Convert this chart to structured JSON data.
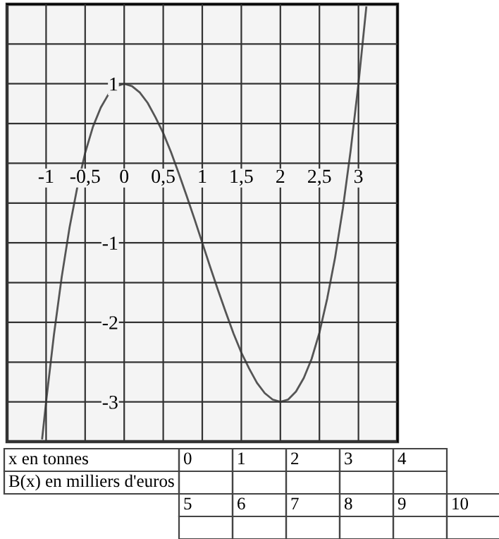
{
  "chart_data": {
    "type": "line",
    "x": [
      -1.05,
      -1.0,
      -0.9,
      -0.8,
      -0.7,
      -0.6,
      -0.5,
      -0.4,
      -0.3,
      -0.2,
      -0.1,
      0.0,
      0.1,
      0.2,
      0.3,
      0.4,
      0.5,
      0.6,
      0.7,
      0.8,
      0.9,
      1.0,
      1.1,
      1.2,
      1.3,
      1.4,
      1.5,
      1.6,
      1.7,
      1.8,
      1.9,
      2.0,
      2.1,
      2.2,
      2.3,
      2.4,
      2.5,
      2.6,
      2.7,
      2.8,
      2.9,
      3.0,
      3.1
    ],
    "series": [
      {
        "color": "#555555",
        "values": [
          -3.46,
          -3.0,
          -2.16,
          -1.43,
          -0.81,
          -0.3,
          0.13,
          0.46,
          0.7,
          0.87,
          0.97,
          1.0,
          0.97,
          0.89,
          0.76,
          0.58,
          0.38,
          0.14,
          -0.13,
          -0.41,
          -0.7,
          -1.0,
          -1.3,
          -1.59,
          -1.87,
          -2.14,
          -2.38,
          -2.58,
          -2.76,
          -2.89,
          -2.97,
          -3.0,
          -2.97,
          -2.87,
          -2.7,
          -2.46,
          -2.13,
          -1.7,
          -1.19,
          -0.57,
          0.16,
          1.0,
          1.96
        ]
      }
    ],
    "xlim": [
      -1.5,
      3.5
    ],
    "ylim": [
      -3.5,
      2.0
    ],
    "xticks": [
      {
        "value": -1,
        "label": "-1"
      },
      {
        "value": -0.5,
        "label": "-0,5"
      },
      {
        "value": 0,
        "label": "0"
      },
      {
        "value": 0.5,
        "label": "0,5"
      },
      {
        "value": 1,
        "label": "1"
      },
      {
        "value": 1.5,
        "label": "1,5"
      },
      {
        "value": 2,
        "label": "2"
      },
      {
        "value": 2.5,
        "label": "2,5"
      },
      {
        "value": 3,
        "label": "3"
      }
    ],
    "yticks": [
      {
        "value": -3,
        "label": "-3"
      },
      {
        "value": -2.5,
        "label": null
      },
      {
        "value": -2,
        "label": "-2"
      },
      {
        "value": -1.5,
        "label": null
      },
      {
        "value": -1,
        "label": "-1"
      },
      {
        "value": -0.5,
        "label": null
      },
      {
        "value": 0,
        "label": null
      },
      {
        "value": 0.5,
        "label": null
      },
      {
        "value": 1,
        "label": "1"
      },
      {
        "value": 1.5,
        "label": null
      }
    ],
    "grid": true,
    "marker": "none",
    "line_style": "solid",
    "annotations": [
      "x en tonnes",
      "B(x) en milliers d'euros",
      "0",
      "1",
      "2",
      "3",
      "4",
      "5",
      "6",
      "7",
      "8",
      "9",
      "10"
    ]
  }
}
